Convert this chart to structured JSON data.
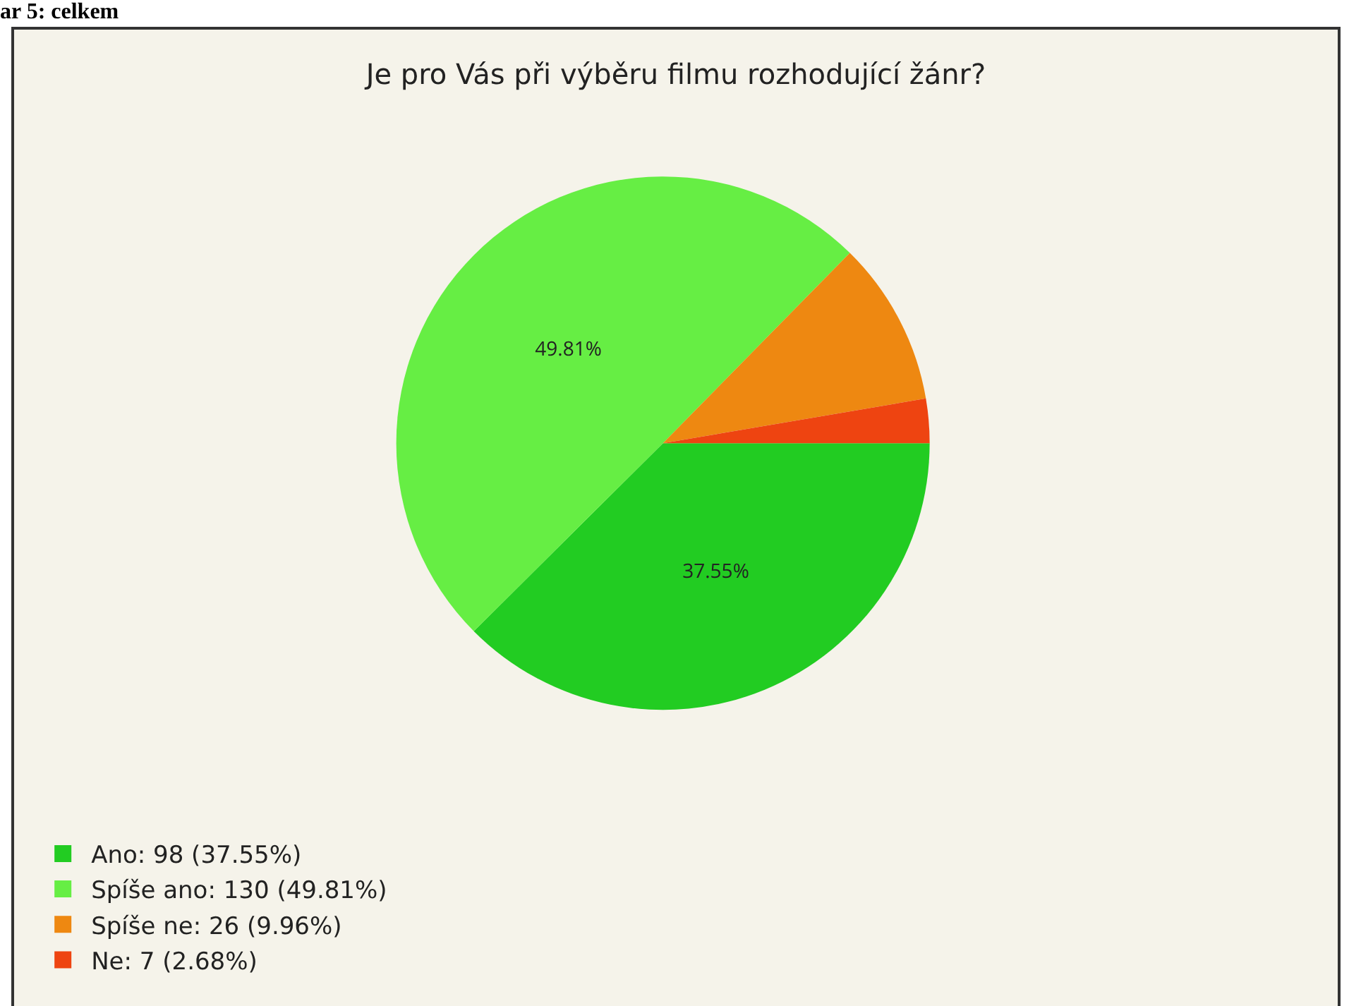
{
  "chart_data": {
    "type": "pie",
    "title": "Je pro Vás při výběru filmu rozhodující žánr?",
    "categories": [
      "Ano: 98 (37.55%)",
      "Spíše ano: 130 (49.81%)",
      "Spíše ne: 26 (9.96%)",
      "Ne: 7 (2.68%)"
    ],
    "values": [
      37.55,
      49.81,
      9.96,
      2.68
    ],
    "colors": [
      "#22cc22",
      "#66ee44",
      "#ee8811",
      "#ee4411"
    ],
    "value_labels": [
      "37.55%",
      "49.81%",
      null,
      null
    ],
    "legend": "bottom left",
    "annotations": [
      "ar 5: celkem"
    ]
  }
}
